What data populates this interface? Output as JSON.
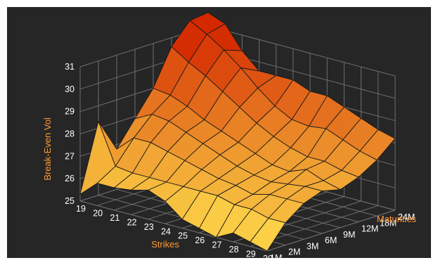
{
  "colors": {
    "background": "#262626",
    "grid": "#6e6e6e",
    "tick_text": "#ffffff",
    "axis_title": "#ff9a33",
    "low": "#ffe14d",
    "high": "#d42800",
    "mesh": "#1a1a1a"
  },
  "chart_data": {
    "type": "surface3d",
    "title": "",
    "xlabel": "Strikes",
    "ylabel": "Maturities",
    "zlabel": "Break-Even Vol",
    "zlim": [
      25,
      31
    ],
    "z_ticks": [
      "25",
      "26",
      "27",
      "28",
      "29",
      "30",
      "31"
    ],
    "x": [
      "19",
      "20",
      "21",
      "22",
      "23",
      "24",
      "25",
      "26",
      "27",
      "28",
      "29",
      "30"
    ],
    "y": [
      "1M",
      "2M",
      "3M",
      "6M",
      "9M",
      "12M",
      "18M",
      "24M"
    ],
    "z": [
      [
        25.3,
        26.0,
        26.0,
        26.1,
        26.3,
        26.0,
        25.4,
        25.2,
        25.0,
        25.4,
        25.2,
        25.0
      ],
      [
        28.3,
        26.5,
        26.4,
        26.4,
        26.4,
        26.4,
        26.4,
        26.4,
        26.2,
        26.2,
        26.0,
        26.0
      ],
      [
        26.8,
        27.5,
        27.5,
        27.3,
        27.1,
        26.9,
        26.7,
        26.6,
        26.4,
        26.6,
        26.6,
        26.6
      ],
      [
        27.9,
        28.3,
        28.2,
        27.9,
        27.6,
        27.3,
        27.0,
        26.8,
        26.7,
        26.8,
        26.9,
        26.9
      ],
      [
        29.0,
        28.9,
        28.6,
        28.2,
        27.9,
        27.6,
        27.3,
        27.0,
        26.9,
        27.2,
        26.9,
        26.7
      ],
      [
        30.6,
        30.1,
        29.7,
        29.2,
        28.7,
        28.2,
        27.8,
        27.5,
        27.3,
        27.3,
        27.1,
        27.0
      ],
      [
        31.5,
        31.1,
        30.6,
        30.0,
        29.3,
        28.7,
        28.3,
        28.2,
        28.3,
        28.0,
        27.7,
        27.5
      ],
      [
        31.6,
        31.3,
        30.3,
        29.6,
        29.6,
        29.6,
        29.3,
        29.3,
        29.0,
        28.7,
        28.4,
        28.2
      ]
    ]
  }
}
